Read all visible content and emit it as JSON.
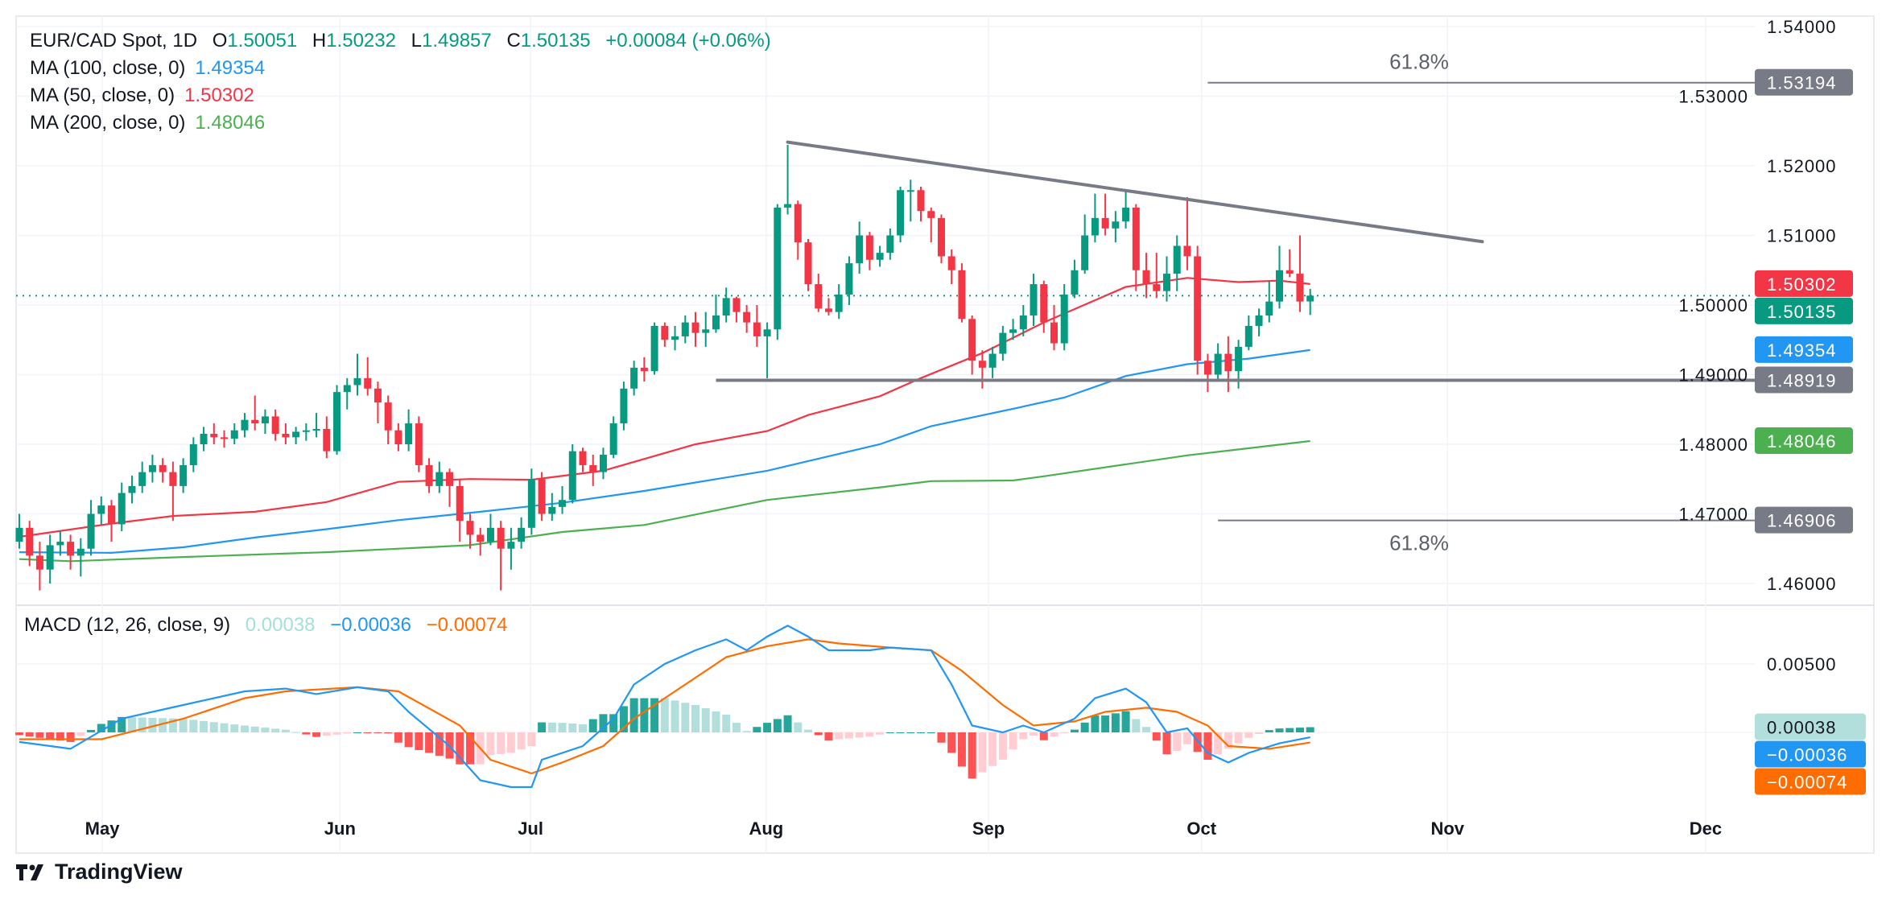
{
  "header": {
    "symbol": "EUR/CAD Spot, 1D",
    "o_label": "O",
    "o": "1.50051",
    "h_label": "H",
    "h": "1.50232",
    "l_label": "L",
    "l": "1.49857",
    "c_label": "C",
    "c": "1.50135",
    "change": "+0.00084 (+0.06%)"
  },
  "indicators": [
    {
      "label": "MA (100, close, 0)",
      "value": "1.49354",
      "color": "#2196f3"
    },
    {
      "label": "MA (50, close, 0)",
      "value": "1.50302",
      "color": "#f23645"
    },
    {
      "label": "MA (200, close, 0)",
      "value": "1.48046",
      "color": "#4caf50"
    }
  ],
  "macd_legend": {
    "label": "MACD (12, 26, close, 9)",
    "hist": "0.00038",
    "hist_color": "#a5dfd5",
    "macd": "−0.00036",
    "macd_color": "#2196f3",
    "signal": "−0.00074",
    "signal_color": "#ff6d00"
  },
  "price_axis": {
    "ticks": [
      "1.54000",
      "1.53000",
      "1.52000",
      "1.51000",
      "1.50000",
      "1.49000",
      "1.48000",
      "1.47000",
      "1.46000"
    ]
  },
  "macd_axis": {
    "ticks": [
      "0.00500"
    ]
  },
  "badges": [
    {
      "text": "1.53194",
      "value": 1.53194,
      "color": "#787b86"
    },
    {
      "text": "1.50302",
      "value": 1.50302,
      "color": "#f23645"
    },
    {
      "text": "1.50135",
      "value": 1.50135,
      "color": "#089981"
    },
    {
      "text": "1.49354",
      "value": 1.49354,
      "color": "#2196f3"
    },
    {
      "text": "1.48919",
      "value": 1.48919,
      "color": "#787b86"
    },
    {
      "text": "1.48046",
      "value": 1.48046,
      "color": "#4caf50"
    },
    {
      "text": "1.46906",
      "value": 1.46906,
      "color": "#787b86"
    }
  ],
  "macd_badges": [
    {
      "text": "0.00038",
      "value": 0.00038,
      "color": "#b2dfdb",
      "text_color": "#131722"
    },
    {
      "text": "−0.00036",
      "value": -0.00036,
      "color": "#2196f3",
      "text_color": "#ffffff"
    },
    {
      "text": "−0.00074",
      "value": -0.00074,
      "color": "#ff6d00",
      "text_color": "#ffffff"
    }
  ],
  "drawings": {
    "fib_top": {
      "label": "61.8%",
      "price": 1.53194,
      "start_bar": 116
    },
    "fib_bottom": {
      "label": "61.8%",
      "price": 1.46906,
      "start_bar": 117
    },
    "support": {
      "price": 1.48919,
      "start_bar": 68
    },
    "trendline": {
      "start": [
        75,
        1.5234
      ],
      "end": [
        142.8,
        1.5091
      ]
    },
    "color": "#787b86"
  },
  "branding": "TradingView",
  "chart_data": {
    "type": "candlestick",
    "title": "EUR/CAD Spot, 1D",
    "colors": {
      "up": "#089981",
      "down": "#f23645",
      "ma50": "#f23645",
      "ma100": "#2196f3",
      "ma200": "#4caf50",
      "macd": "#2196f3",
      "signal": "#ff6d00"
    },
    "ylim": [
      1.455,
      1.544
    ],
    "last_price": 1.50135,
    "time_ticks": [
      {
        "label": "May",
        "bar": 8.1
      },
      {
        "label": "Jun",
        "bar": 31.3
      },
      {
        "label": "Jul",
        "bar": 49.9
      },
      {
        "label": "Aug",
        "bar": 72.9
      },
      {
        "label": "Sep",
        "bar": 94.6
      },
      {
        "label": "Oct",
        "bar": 115.4
      },
      {
        "label": "Nov",
        "bar": 139.4
      },
      {
        "label": "Dec",
        "bar": 164.6
      }
    ],
    "candles_ohlc": [
      [
        1.466,
        1.47,
        1.465,
        1.468
      ],
      [
        1.468,
        1.469,
        1.4625,
        1.464
      ],
      [
        1.464,
        1.466,
        1.459,
        1.462
      ],
      [
        1.462,
        1.467,
        1.46,
        1.4655
      ],
      [
        1.4655,
        1.4675,
        1.464,
        1.466
      ],
      [
        1.466,
        1.467,
        1.462,
        1.464
      ],
      [
        1.464,
        1.4665,
        1.461,
        1.465
      ],
      [
        1.465,
        1.472,
        1.464,
        1.47
      ],
      [
        1.47,
        1.4725,
        1.4685,
        1.4712
      ],
      [
        1.4712,
        1.472,
        1.466,
        1.4685
      ],
      [
        1.4685,
        1.4745,
        1.4675,
        1.473
      ],
      [
        1.473,
        1.4755,
        1.4715,
        1.474
      ],
      [
        1.474,
        1.4775,
        1.473,
        1.476
      ],
      [
        1.476,
        1.4785,
        1.4745,
        1.477
      ],
      [
        1.477,
        1.478,
        1.4745,
        1.476
      ],
      [
        1.476,
        1.4775,
        1.469,
        1.474
      ],
      [
        1.474,
        1.478,
        1.473,
        1.477
      ],
      [
        1.477,
        1.481,
        1.476,
        1.48
      ],
      [
        1.48,
        1.4825,
        1.479,
        1.4815
      ],
      [
        1.4815,
        1.483,
        1.48,
        1.481
      ],
      [
        1.481,
        1.482,
        1.4795,
        1.4808
      ],
      [
        1.4808,
        1.483,
        1.48,
        1.482
      ],
      [
        1.482,
        1.4845,
        1.481,
        1.4835
      ],
      [
        1.4835,
        1.487,
        1.482,
        1.483
      ],
      [
        1.483,
        1.485,
        1.4815,
        1.484
      ],
      [
        1.484,
        1.485,
        1.4805,
        1.4815
      ],
      [
        1.4815,
        1.483,
        1.48,
        1.481
      ],
      [
        1.481,
        1.4825,
        1.48,
        1.4818
      ],
      [
        1.4818,
        1.483,
        1.4805,
        1.482
      ],
      [
        1.482,
        1.4845,
        1.481,
        1.4822
      ],
      [
        1.4822,
        1.484,
        1.478,
        1.479
      ],
      [
        1.479,
        1.4885,
        1.4785,
        1.4875
      ],
      [
        1.4875,
        1.4895,
        1.485,
        1.4885
      ],
      [
        1.4885,
        1.493,
        1.487,
        1.4895
      ],
      [
        1.4895,
        1.4925,
        1.487,
        1.488
      ],
      [
        1.488,
        1.489,
        1.483,
        1.486
      ],
      [
        1.486,
        1.487,
        1.48,
        1.482
      ],
      [
        1.482,
        1.483,
        1.479,
        1.48
      ],
      [
        1.48,
        1.485,
        1.479,
        1.483
      ],
      [
        1.483,
        1.484,
        1.476,
        1.477
      ],
      [
        1.477,
        1.478,
        1.473,
        1.474
      ],
      [
        1.474,
        1.4775,
        1.473,
        1.476
      ],
      [
        1.476,
        1.4765,
        1.471,
        1.474
      ],
      [
        1.474,
        1.475,
        1.466,
        1.469
      ],
      [
        1.469,
        1.47,
        1.465,
        1.467
      ],
      [
        1.467,
        1.468,
        1.464,
        1.466
      ],
      [
        1.466,
        1.47,
        1.4655,
        1.468
      ],
      [
        1.468,
        1.469,
        1.459,
        1.465
      ],
      [
        1.465,
        1.468,
        1.462,
        1.466
      ],
      [
        1.466,
        1.4695,
        1.465,
        1.468
      ],
      [
        1.468,
        1.4765,
        1.467,
        1.475
      ],
      [
        1.475,
        1.476,
        1.469,
        1.47
      ],
      [
        1.47,
        1.473,
        1.469,
        1.471
      ],
      [
        1.471,
        1.474,
        1.47,
        1.472
      ],
      [
        1.472,
        1.48,
        1.4715,
        1.479
      ],
      [
        1.479,
        1.4795,
        1.476,
        1.477
      ],
      [
        1.477,
        1.4785,
        1.474,
        1.476
      ],
      [
        1.476,
        1.4795,
        1.475,
        1.4785
      ],
      [
        1.4785,
        1.484,
        1.478,
        1.483
      ],
      [
        1.483,
        1.489,
        1.482,
        1.488
      ],
      [
        1.488,
        1.492,
        1.487,
        1.491
      ],
      [
        1.491,
        1.4925,
        1.489,
        1.4905
      ],
      [
        1.4905,
        1.4975,
        1.49,
        1.497
      ],
      [
        1.497,
        1.4975,
        1.494,
        1.495
      ],
      [
        1.495,
        1.497,
        1.4935,
        1.4955
      ],
      [
        1.4955,
        1.4985,
        1.4945,
        1.4975
      ],
      [
        1.4975,
        1.499,
        1.494,
        1.496
      ],
      [
        1.496,
        1.499,
        1.494,
        1.4965
      ],
      [
        1.4965,
        1.5015,
        1.496,
        1.4985
      ],
      [
        1.4985,
        1.5025,
        1.4975,
        1.501
      ],
      [
        1.501,
        1.5012,
        1.4975,
        1.499
      ],
      [
        1.499,
        1.5,
        1.496,
        1.4975
      ],
      [
        1.4975,
        1.5,
        1.494,
        1.4955
      ],
      [
        1.4955,
        1.4975,
        1.4895,
        1.4965
      ],
      [
        1.4965,
        1.5145,
        1.495,
        1.514
      ],
      [
        1.514,
        1.523,
        1.513,
        1.5145
      ],
      [
        1.5145,
        1.515,
        1.5065,
        1.509
      ],
      [
        1.509,
        1.5095,
        1.502,
        1.503
      ],
      [
        1.503,
        1.5045,
        1.499,
        1.4995
      ],
      [
        1.4995,
        1.501,
        1.4985,
        1.499
      ],
      [
        1.499,
        1.503,
        1.498,
        1.5015
      ],
      [
        1.5015,
        1.507,
        1.5,
        1.506
      ],
      [
        1.506,
        1.512,
        1.5045,
        1.51
      ],
      [
        1.51,
        1.5105,
        1.505,
        1.5065
      ],
      [
        1.5065,
        1.5085,
        1.5055,
        1.5075
      ],
      [
        1.5075,
        1.511,
        1.5065,
        1.51
      ],
      [
        1.51,
        1.517,
        1.509,
        1.5165
      ],
      [
        1.5165,
        1.518,
        1.512,
        1.5165
      ],
      [
        1.5165,
        1.517,
        1.512,
        1.5135
      ],
      [
        1.5135,
        1.514,
        1.509,
        1.5125
      ],
      [
        1.5125,
        1.513,
        1.506,
        1.507
      ],
      [
        1.507,
        1.508,
        1.503,
        1.505
      ],
      [
        1.505,
        1.506,
        1.4975,
        1.498
      ],
      [
        1.498,
        1.4985,
        1.49,
        1.492
      ],
      [
        1.492,
        1.4935,
        1.488,
        1.491
      ],
      [
        1.491,
        1.494,
        1.4895,
        1.493
      ],
      [
        1.493,
        1.497,
        1.492,
        1.496
      ],
      [
        1.496,
        1.498,
        1.495,
        1.4965
      ],
      [
        1.4965,
        1.5,
        1.4955,
        1.4985
      ],
      [
        1.4985,
        1.5045,
        1.497,
        1.503
      ],
      [
        1.503,
        1.5035,
        1.496,
        1.4975
      ],
      [
        1.4975,
        1.5,
        1.4935,
        1.4945
      ],
      [
        1.4945,
        1.503,
        1.4935,
        1.5015
      ],
      [
        1.5015,
        1.5065,
        1.501,
        1.505
      ],
      [
        1.505,
        1.513,
        1.5045,
        1.51
      ],
      [
        1.51,
        1.516,
        1.509,
        1.5125
      ],
      [
        1.5125,
        1.516,
        1.51,
        1.511
      ],
      [
        1.511,
        1.5135,
        1.509,
        1.512
      ],
      [
        1.512,
        1.5165,
        1.511,
        1.514
      ],
      [
        1.514,
        1.5145,
        1.502,
        1.505
      ],
      [
        1.505,
        1.5075,
        1.501,
        1.503
      ],
      [
        1.503,
        1.5075,
        1.501,
        1.502
      ],
      [
        1.502,
        1.507,
        1.5005,
        1.5045
      ],
      [
        1.5045,
        1.51,
        1.502,
        1.5085
      ],
      [
        1.5085,
        1.5155,
        1.505,
        1.507
      ],
      [
        1.507,
        1.5085,
        1.49,
        1.492
      ],
      [
        1.492,
        1.493,
        1.4875,
        1.49
      ],
      [
        1.49,
        1.4945,
        1.489,
        1.493
      ],
      [
        1.493,
        1.4955,
        1.4875,
        1.4905
      ],
      [
        1.4905,
        1.495,
        1.488,
        1.494
      ],
      [
        1.494,
        1.4985,
        1.4935,
        1.497
      ],
      [
        1.497,
        1.4995,
        1.4955,
        1.4985
      ],
      [
        1.4985,
        1.5035,
        1.4975,
        1.5005
      ],
      [
        1.5005,
        1.5085,
        1.4995,
        1.505
      ],
      [
        1.505,
        1.508,
        1.504,
        1.5045
      ],
      [
        1.5045,
        1.51,
        1.499,
        1.5005
      ],
      [
        1.50051,
        1.50232,
        1.49857,
        1.50135
      ]
    ],
    "ma50": [
      [
        0,
        1.4667
      ],
      [
        9,
        1.4686
      ],
      [
        15,
        1.4697
      ],
      [
        23,
        1.4703
      ],
      [
        30,
        1.4717
      ],
      [
        37,
        1.4746
      ],
      [
        44,
        1.475
      ],
      [
        50,
        1.4749
      ],
      [
        57,
        1.4762
      ],
      [
        66,
        1.48
      ],
      [
        73,
        1.4819
      ],
      [
        77,
        1.4842
      ],
      [
        84,
        1.4869
      ],
      [
        88,
        1.4895
      ],
      [
        94,
        1.4931
      ],
      [
        100,
        1.4975
      ],
      [
        108,
        1.5026
      ],
      [
        114,
        1.5039
      ],
      [
        119,
        1.5033
      ],
      [
        123,
        1.5035
      ],
      [
        126,
        1.50302
      ]
    ],
    "ma100": [
      [
        0,
        1.4645
      ],
      [
        9,
        1.4644
      ],
      [
        16,
        1.4652
      ],
      [
        23,
        1.4666
      ],
      [
        30,
        1.4678
      ],
      [
        37,
        1.4691
      ],
      [
        45,
        1.4703
      ],
      [
        53,
        1.4716
      ],
      [
        61,
        1.4733
      ],
      [
        73,
        1.4762
      ],
      [
        84,
        1.48
      ],
      [
        89,
        1.4826
      ],
      [
        97,
        1.4851
      ],
      [
        102,
        1.4867
      ],
      [
        108,
        1.4898
      ],
      [
        114,
        1.4915
      ],
      [
        120,
        1.4923
      ],
      [
        126,
        1.49354
      ]
    ],
    "ma200": [
      [
        0,
        1.4635
      ],
      [
        5,
        1.4632
      ],
      [
        16,
        1.4638
      ],
      [
        30,
        1.4645
      ],
      [
        44,
        1.4655
      ],
      [
        53,
        1.4674
      ],
      [
        61,
        1.4684
      ],
      [
        73,
        1.472
      ],
      [
        84,
        1.4738
      ],
      [
        89,
        1.4747
      ],
      [
        97,
        1.4748
      ],
      [
        100,
        1.4754
      ],
      [
        114,
        1.4784
      ],
      [
        126,
        1.48046
      ]
    ],
    "macd_ylim": [
      -0.0055,
      0.0085
    ],
    "macd_line": [
      [
        0,
        -0.0007
      ],
      [
        5,
        -0.0012
      ],
      [
        10,
        0.001
      ],
      [
        16,
        0.002
      ],
      [
        22,
        0.003
      ],
      [
        26,
        0.0032
      ],
      [
        29,
        0.0028
      ],
      [
        33,
        0.0033
      ],
      [
        36,
        0.003
      ],
      [
        38,
        0.0015
      ],
      [
        42,
        -0.001
      ],
      [
        45,
        -0.0035
      ],
      [
        48,
        -0.004
      ],
      [
        50,
        -0.004
      ],
      [
        51,
        -0.002
      ],
      [
        55,
        -0.001
      ],
      [
        58,
        0.001
      ],
      [
        60,
        0.0035
      ],
      [
        63,
        0.005
      ],
      [
        66,
        0.006
      ],
      [
        69,
        0.0068
      ],
      [
        71,
        0.006
      ],
      [
        73,
        0.007
      ],
      [
        75,
        0.0078
      ],
      [
        77,
        0.007
      ],
      [
        79,
        0.006
      ],
      [
        83,
        0.006
      ],
      [
        85,
        0.0062
      ],
      [
        89,
        0.006
      ],
      [
        91,
        0.0035
      ],
      [
        93,
        0.0005
      ],
      [
        96,
        0.0
      ],
      [
        98,
        0.0005
      ],
      [
        100,
        0.0
      ],
      [
        103,
        0.001
      ],
      [
        105,
        0.0025
      ],
      [
        108,
        0.0032
      ],
      [
        110,
        0.0022
      ],
      [
        112,
        0.0
      ],
      [
        114,
        0.0003
      ],
      [
        116,
        -0.0015
      ],
      [
        118,
        -0.0022
      ],
      [
        120,
        -0.0015
      ],
      [
        123,
        -0.0008
      ],
      [
        126,
        -0.00036
      ]
    ],
    "signal_line": [
      [
        0,
        -0.0005
      ],
      [
        8,
        -0.0005
      ],
      [
        16,
        0.001
      ],
      [
        22,
        0.0025
      ],
      [
        26,
        0.003
      ],
      [
        33,
        0.0033
      ],
      [
        37,
        0.003
      ],
      [
        43,
        0.0005
      ],
      [
        46,
        -0.002
      ],
      [
        50,
        -0.003
      ],
      [
        53,
        -0.0022
      ],
      [
        57,
        -0.001
      ],
      [
        60,
        0.001
      ],
      [
        64,
        0.003
      ],
      [
        69,
        0.0055
      ],
      [
        73,
        0.0063
      ],
      [
        77,
        0.0068
      ],
      [
        80,
        0.0065
      ],
      [
        85,
        0.0062
      ],
      [
        89,
        0.006
      ],
      [
        92,
        0.0045
      ],
      [
        96,
        0.002
      ],
      [
        99,
        0.0005
      ],
      [
        103,
        0.0008
      ],
      [
        106,
        0.0015
      ],
      [
        110,
        0.0018
      ],
      [
        113,
        0.0015
      ],
      [
        116,
        0.0005
      ],
      [
        118,
        -0.001
      ],
      [
        122,
        -0.0012
      ],
      [
        126,
        -0.00074
      ]
    ]
  }
}
